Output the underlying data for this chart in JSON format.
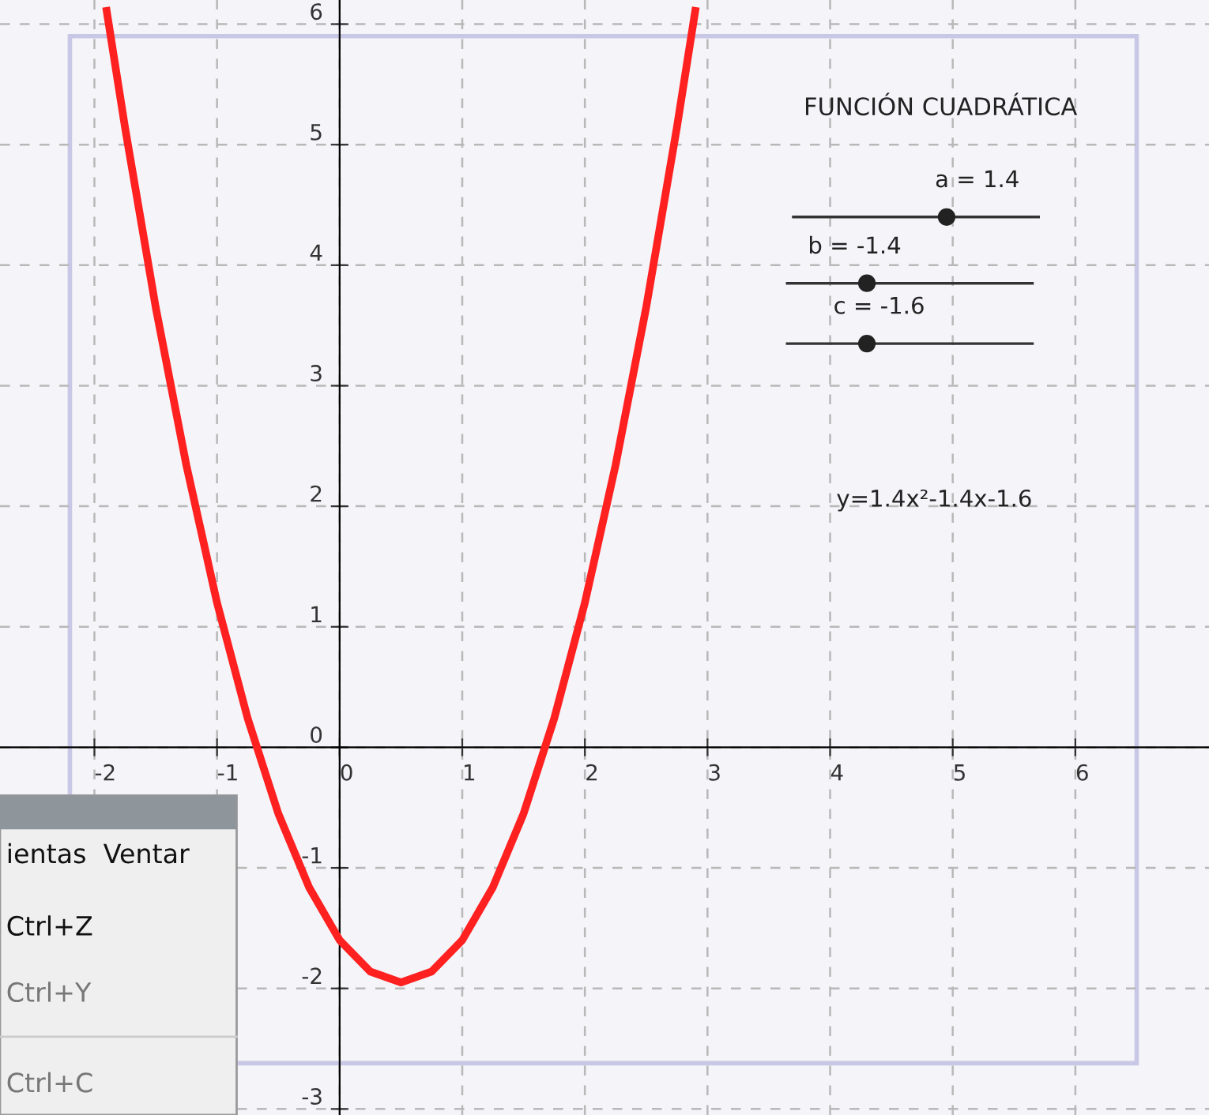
{
  "chart_data": {
    "type": "line",
    "x": [
      -1.9,
      -1.75,
      -1.5,
      -1.25,
      -1.0,
      -0.75,
      -0.5,
      -0.25,
      0,
      0.25,
      0.5,
      0.75,
      1.0,
      1.25,
      1.5,
      1.75,
      2.0,
      2.25,
      2.5,
      2.75,
      2.9
    ],
    "series": [
      {
        "color": "#ff2020",
        "values": [
          6.11,
          5.14,
          3.65,
          2.34,
          1.2,
          0.24,
          -0.55,
          -1.16,
          -1.6,
          -1.86,
          -1.95,
          -1.86,
          -1.6,
          -1.16,
          -0.55,
          0.24,
          1.2,
          2.34,
          3.65,
          5.14,
          6.11
        ]
      }
    ],
    "xlim": [
      -2.77,
      7.09
    ],
    "ylim": [
      -3.05,
      6.2
    ],
    "xticks": [
      -2,
      -1,
      0,
      1,
      2,
      3,
      4,
      5,
      6
    ],
    "yticks": [
      -3,
      -2,
      -1,
      0,
      1,
      2,
      3,
      4,
      5,
      6
    ],
    "grid": true,
    "line_style": "solid",
    "marker": "none",
    "annotations": [
      "FUNCIÓN CUADRÁTICA",
      "a = 1.4",
      "b = -1.4",
      "c = -1.6",
      "y=1.4x²-1.4x-1.6",
      "ientas  Ventar",
      "Ctrl+Z",
      "Ctrl+Y",
      "Ctrl+C"
    ]
  }
}
